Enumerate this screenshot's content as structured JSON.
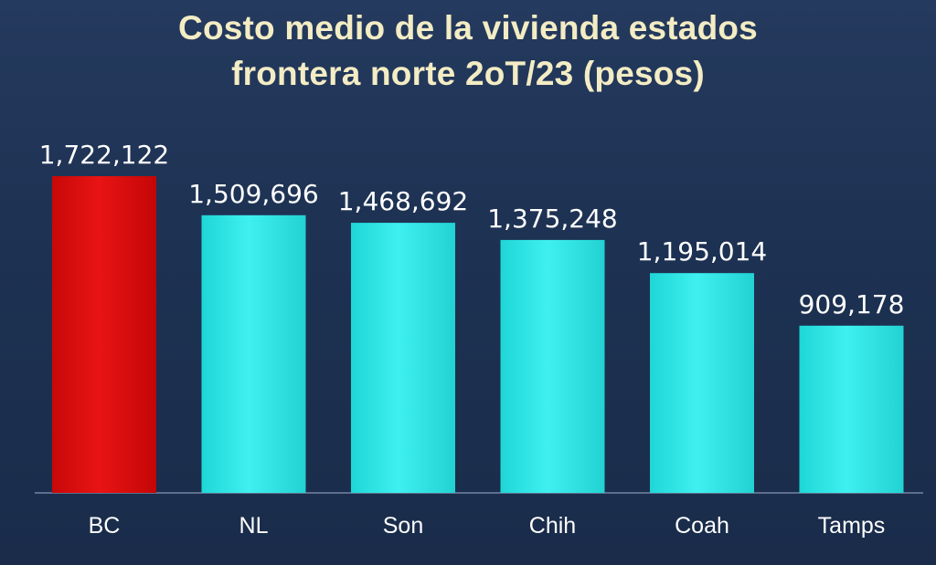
{
  "chart_data": {
    "type": "bar",
    "title": "Costo medio de la vivienda estados",
    "subtitle": "frontera norte 2oT/23 (pesos)",
    "categories": [
      "BC",
      "NL",
      "Son",
      "Chih",
      "Coah",
      "Tamps"
    ],
    "values": [
      1722122,
      1509696,
      1468692,
      1375248,
      1195014,
      909178
    ],
    "value_labels": [
      "1,722,122",
      "1,509,696",
      "1,468,692",
      "1,375,248",
      "1,195,014",
      "909,178"
    ],
    "ylim": [
      0,
      1722122
    ],
    "grid": false,
    "legend": "none",
    "colors": {
      "highlight": "#e01010",
      "bar": "#33e6e6",
      "background": "#1f3354",
      "title": "#f3ecc4",
      "axis": "#5d6f8c"
    },
    "highlight_index": 0
  }
}
